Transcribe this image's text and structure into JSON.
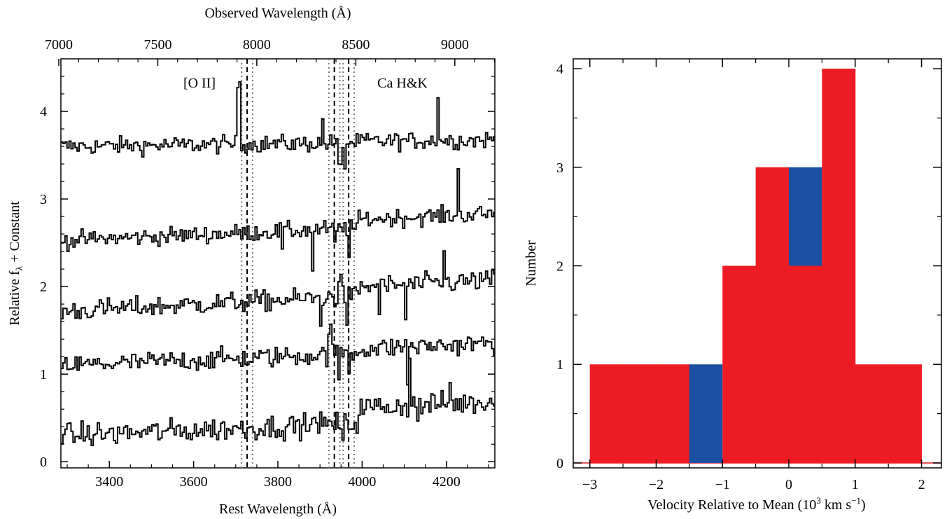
{
  "chart_data": [
    {
      "type": "line",
      "panel": "spectra",
      "title": "",
      "top_axis": {
        "label": "Observed Wavelength (Å)",
        "ticks": [
          7000,
          7500,
          8000,
          8500,
          9000
        ],
        "tick_labels": [
          "7000",
          "7500",
          "8000",
          "8500",
          "9000"
        ]
      },
      "xlabel": "Rest Wavelength (Å)",
      "ylabel_parts": [
        "Relative f",
        "λ",
        " + Constant"
      ],
      "xlim": [
        3285,
        4315
      ],
      "ylim": [
        -0.07,
        4.6
      ],
      "xticks": [
        3400,
        3600,
        3800,
        4000,
        4200
      ],
      "xtick_labels": [
        "3400",
        "3600",
        "3800",
        "4000",
        "4200"
      ],
      "yticks": [
        0,
        1,
        2,
        3,
        4
      ],
      "ytick_labels": [
        "0",
        "1",
        "2",
        "3",
        "4"
      ],
      "annotations": [
        {
          "text": "[O II]",
          "x": 3677,
          "y": 4.3
        },
        {
          "text": "Ca H&K",
          "x": 4048,
          "y": 4.3
        }
      ],
      "dashed_lines_x": [
        3727,
        3934,
        3968
      ],
      "dotted_lines_x": [
        3714,
        3740,
        3921,
        3947,
        3955,
        3981
      ],
      "series": [
        {
          "offset": 3.6,
          "noise": 0.05,
          "slope": 6e-05,
          "step": 0.015,
          "features": [
            [
              3705,
              0.7
            ],
            [
              3905,
              0.25
            ],
            [
              3945,
              -0.3
            ],
            [
              3955,
              -0.28
            ],
            [
              4180,
              0.55
            ]
          ]
        },
        {
          "offset": 2.53,
          "noise": 0.05,
          "slope": 0.0002,
          "step": 0.1,
          "features": [
            [
              3808,
              -0.17
            ],
            [
              3878,
              -0.45
            ],
            [
              3932,
              -0.2
            ],
            [
              3966,
              -0.25
            ],
            [
              4225,
              0.5
            ]
          ]
        },
        {
          "offset": 1.72,
          "noise": 0.06,
          "slope": 0.00025,
          "step": 0.1,
          "features": [
            [
              3898,
              -0.32
            ],
            [
              3945,
              0.22
            ],
            [
              3960,
              -0.25
            ],
            [
              4040,
              -0.25
            ],
            [
              4103,
              -0.4
            ],
            [
              4192,
              0.35
            ]
          ]
        },
        {
          "offset": 1.1,
          "noise": 0.06,
          "slope": 0.0002,
          "step": 0.05,
          "features": [
            [
              3727,
              -0.1
            ],
            [
              3921,
              0.3
            ],
            [
              3942,
              -0.22
            ],
            [
              3968,
              -0.18
            ],
            [
              4108,
              -0.35
            ]
          ]
        },
        {
          "offset": 0.3,
          "noise": 0.07,
          "slope": 0.0002,
          "step": 0.18,
          "features": [
            [
              3890,
              0.2
            ],
            [
              3952,
              -0.28
            ],
            [
              4112,
              0.6
            ],
            [
              4130,
              -0.18
            ],
            [
              4205,
              0.25
            ]
          ]
        }
      ]
    },
    {
      "type": "bar",
      "panel": "histogram",
      "title": "",
      "xlabel_parts": [
        "Velocity Relative to Mean (10",
        "3",
        " km s",
        "−1",
        ")"
      ],
      "ylabel": "Number",
      "xlim": [
        -3.25,
        2.3
      ],
      "ylim": [
        -0.05,
        4.1
      ],
      "xticks": [
        -3,
        -2,
        -1,
        0,
        1,
        2
      ],
      "xtick_labels": [
        "−3",
        "−2",
        "−1",
        "0",
        "1",
        "2"
      ],
      "yticks": [
        0,
        1,
        2,
        3,
        4
      ],
      "ytick_labels": [
        "0",
        "1",
        "2",
        "3",
        "4"
      ],
      "bin_width": 0.5,
      "colors": {
        "red": "#ed1c24",
        "blue": "#1a4fa1"
      },
      "series": [
        {
          "color": "#ed1c24",
          "bins": [
            [
              -3.0,
              1
            ],
            [
              -2.5,
              1
            ],
            [
              -2.0,
              1
            ],
            [
              -1.0,
              2
            ],
            [
              -0.5,
              3
            ],
            [
              0.0,
              2
            ],
            [
              0.5,
              4
            ],
            [
              1.0,
              1
            ],
            [
              1.5,
              1
            ]
          ]
        },
        {
          "color": "#1a4fa1",
          "bins": [
            [
              -1.5,
              1
            ],
            [
              0.0,
              1
            ]
          ]
        }
      ]
    }
  ]
}
